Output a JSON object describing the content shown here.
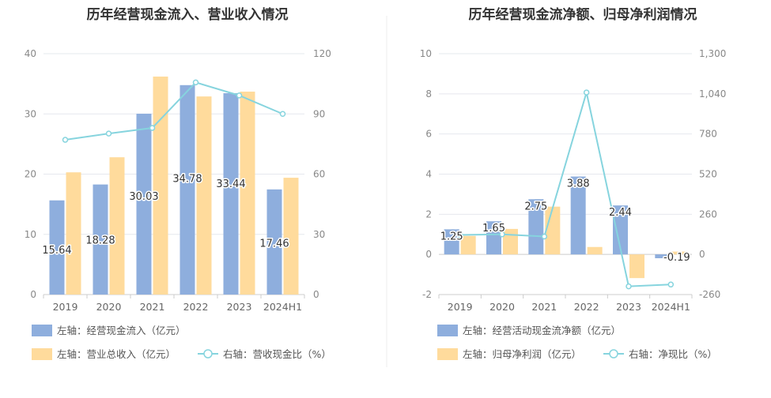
{
  "chart_data": [
    {
      "type": "bar",
      "title": "历年经营现金流入、营业收入情况",
      "categories": [
        "2019",
        "2020",
        "2021",
        "2022",
        "2023",
        "2024H1"
      ],
      "left_axis": {
        "ylim": [
          0,
          40
        ],
        "ticks": [
          "0",
          "10",
          "20",
          "30",
          "40"
        ]
      },
      "right_axis": {
        "ylim": [
          0,
          120
        ],
        "ticks": [
          "0",
          "30",
          "60",
          "90",
          "120"
        ]
      },
      "series": [
        {
          "name": "左轴：经营现金流入（亿元）",
          "type": "bar",
          "axis": "left",
          "color": "#8eaedd",
          "values": [
            15.64,
            18.28,
            30.03,
            34.78,
            33.44,
            17.46
          ],
          "labels": [
            "15.64",
            "18.28",
            "30.03",
            "34.78",
            "33.44",
            "17.46"
          ]
        },
        {
          "name": "左轴：营业总收入（亿元）",
          "type": "bar",
          "axis": "left",
          "color": "#ffdb9c",
          "values": [
            20.3,
            22.8,
            36.2,
            32.9,
            33.7,
            19.4
          ]
        },
        {
          "name": "右轴：营收现金比（%）",
          "type": "line",
          "axis": "right",
          "color": "#86d4de",
          "values": [
            77.1,
            80.2,
            83.0,
            105.7,
            99.2,
            90.0
          ]
        }
      ],
      "grid": true,
      "legend_position": "bottom-left"
    },
    {
      "type": "bar",
      "title": "历年经营现金流净额、归母净利润情况",
      "categories": [
        "2019",
        "2020",
        "2021",
        "2022",
        "2023",
        "2024H1"
      ],
      "left_axis": {
        "ylim": [
          -2,
          10
        ],
        "ticks": [
          "-2",
          "0",
          "2",
          "4",
          "6",
          "8",
          "10"
        ]
      },
      "right_axis": {
        "ylim": [
          -260,
          1300
        ],
        "ticks": [
          "-260",
          "0",
          "260",
          "520",
          "780",
          "1,040",
          "1,300"
        ]
      },
      "series": [
        {
          "name": "左轴：经营活动现金流净额（亿元）",
          "type": "bar",
          "axis": "left",
          "color": "#8eaedd",
          "values": [
            1.25,
            1.65,
            2.75,
            3.88,
            2.44,
            -0.19
          ],
          "labels": [
            "1.25",
            "1.65",
            "2.75",
            "3.88",
            "2.44",
            "-0.19"
          ]
        },
        {
          "name": "左轴：归母净利润（亿元）",
          "type": "bar",
          "axis": "left",
          "color": "#ffdb9c",
          "values": [
            0.92,
            1.27,
            2.38,
            0.37,
            -1.18,
            0.14
          ]
        },
        {
          "name": "右轴：净现比（%）",
          "type": "line",
          "axis": "right",
          "color": "#86d4de",
          "values": [
            126,
            130,
            116,
            1049,
            -207,
            -195
          ]
        }
      ],
      "grid": true,
      "legend_position": "bottom-left"
    }
  ]
}
